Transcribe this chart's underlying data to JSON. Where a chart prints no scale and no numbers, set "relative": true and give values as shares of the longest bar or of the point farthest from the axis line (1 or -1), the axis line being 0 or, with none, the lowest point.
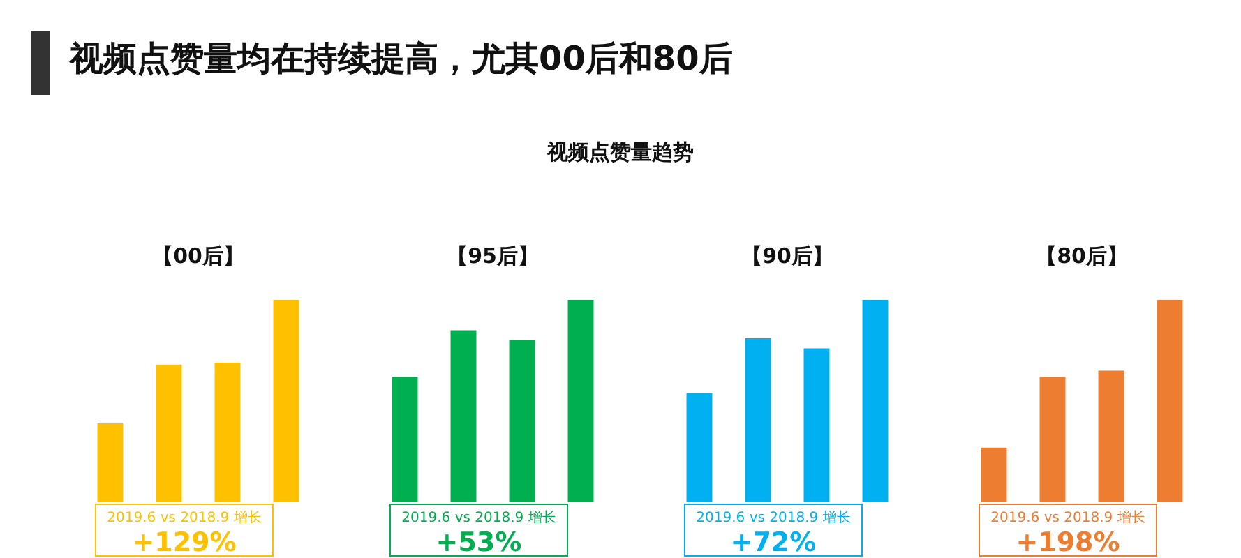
{
  "chart_data": [
    {
      "type": "bar",
      "title": "【00后】",
      "categories": [
        null,
        null,
        null,
        null
      ],
      "values": [
        0.39,
        0.68,
        0.69,
        1
      ],
      "color": "#ffc000",
      "relative": true,
      "annotations": [
        "视频点赞量均在持续提高，尤其00后和80后",
        "视频点赞量趋势",
        "2019.6 vs 2018.9 增长",
        "+129%"
      ]
    },
    {
      "type": "bar",
      "title": "【95后】",
      "categories": [
        null,
        null,
        null,
        null
      ],
      "values": [
        0.62,
        0.85,
        0.8,
        1
      ],
      "color": "#00b050",
      "relative": true,
      "annotations": [
        "2019.6 vs 2018.9 增长",
        "+53%"
      ]
    },
    {
      "type": "bar",
      "title": "【90后】",
      "categories": [
        null,
        null,
        null,
        null
      ],
      "values": [
        0.54,
        0.81,
        0.76,
        1
      ],
      "color": "#00b0f0",
      "relative": true,
      "annotations": [
        "2019.6 vs 2018.9 增长",
        "+72%"
      ]
    },
    {
      "type": "bar",
      "title": "【80后】",
      "categories": [
        null,
        null,
        null,
        null
      ],
      "values": [
        0.27,
        0.62,
        0.65,
        1
      ],
      "color": "#ed7d31",
      "relative": true,
      "annotations": [
        "2019.6 vs 2018.9 增长",
        "+198%"
      ]
    }
  ]
}
